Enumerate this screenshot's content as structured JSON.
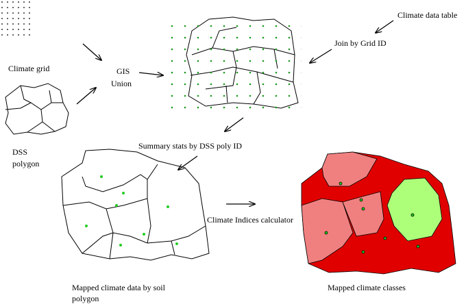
{
  "labels": {
    "climate_grid": "Climate grid",
    "dss_polygon": [
      "DSS",
      "polygon"
    ],
    "gis_union": [
      "GIS",
      "Union"
    ],
    "climate_data_table": "Climate data table",
    "join_by_grid_id": "Join by Grid ID",
    "summary_stats": "Summary stats by DSS poly ID",
    "climate_indices_calculator": "Climate Indices calculator",
    "mapped_climate_data": [
      "Mapped climate data by soil",
      "polygon"
    ],
    "mapped_climate_classes": "Mapped climate classes"
  }
}
